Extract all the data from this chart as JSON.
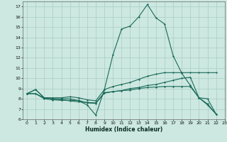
{
  "xlabel": "Humidex (Indice chaleur)",
  "xlim": [
    -0.5,
    23
  ],
  "ylim": [
    6,
    17.5
  ],
  "yticks": [
    6,
    7,
    8,
    9,
    10,
    11,
    12,
    13,
    14,
    15,
    16,
    17
  ],
  "xticks": [
    0,
    1,
    2,
    3,
    4,
    5,
    6,
    7,
    8,
    9,
    10,
    11,
    12,
    13,
    14,
    15,
    16,
    17,
    18,
    19,
    20,
    21,
    22,
    23
  ],
  "bg_color": "#cce8e0",
  "grid_color": "#aaccc4",
  "line_color": "#1a6a5a",
  "lines": [
    [
      8.5,
      8.9,
      8.1,
      8.0,
      8.0,
      8.0,
      7.8,
      7.4,
      6.4,
      8.9,
      12.3,
      14.8,
      15.1,
      16.0,
      17.2,
      15.9,
      15.3,
      12.2,
      10.5,
      9.3,
      8.1,
      7.4,
      6.5
    ],
    [
      8.5,
      8.9,
      8.1,
      8.1,
      8.1,
      8.2,
      8.1,
      7.9,
      7.8,
      8.9,
      9.2,
      9.4,
      9.6,
      9.9,
      10.2,
      10.4,
      10.55,
      10.55,
      10.55,
      10.55,
      10.55,
      10.55,
      10.55
    ],
    [
      8.5,
      8.5,
      8.1,
      8.0,
      7.9,
      7.8,
      7.7,
      7.65,
      7.6,
      8.6,
      8.7,
      8.8,
      8.85,
      9.0,
      9.1,
      9.15,
      9.2,
      9.2,
      9.2,
      9.2,
      8.1,
      8.0,
      6.5
    ],
    [
      8.5,
      8.5,
      8.0,
      7.9,
      7.85,
      7.85,
      7.85,
      7.6,
      7.55,
      8.55,
      8.7,
      8.8,
      9.0,
      9.1,
      9.3,
      9.4,
      9.6,
      9.8,
      10.0,
      10.1,
      8.1,
      7.5,
      6.5
    ]
  ]
}
